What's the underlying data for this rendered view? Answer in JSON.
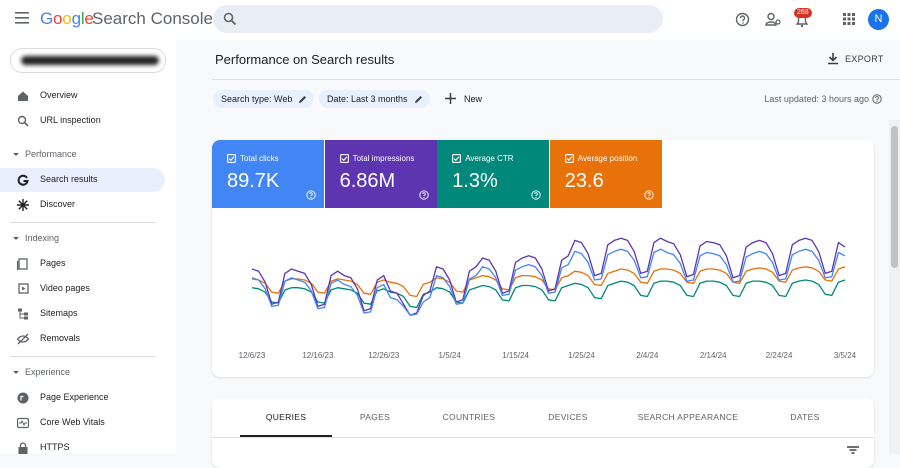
{
  "header": {
    "brand": "Google",
    "product": "Search Console",
    "notifications": "268",
    "avatar": "N"
  },
  "nav": {
    "top": [
      "Overview",
      "URL inspection"
    ],
    "sections": [
      {
        "title": "Performance",
        "items": [
          "Search results",
          "Discover"
        ]
      },
      {
        "title": "Indexing",
        "items": [
          "Pages",
          "Video pages",
          "Sitemaps",
          "Removals"
        ]
      },
      {
        "title": "Experience",
        "items": [
          "Page Experience",
          "Core Web Vitals",
          "HTTPS"
        ]
      }
    ]
  },
  "page": {
    "title": "Performance on Search results",
    "export": "EXPORT",
    "filters": [
      "Search type: Web",
      "Date: Last 3 months"
    ],
    "new": "New",
    "last_updated": "Last updated: 3 hours ago"
  },
  "chart_data": {
    "type": "line",
    "categories": [
      "12/6/23",
      null,
      null,
      null,
      null,
      null,
      null,
      null,
      null,
      null,
      "12/16/23",
      null,
      null,
      null,
      null,
      null,
      null,
      null,
      null,
      null,
      "12/26/23",
      null,
      null,
      null,
      null,
      null,
      null,
      null,
      null,
      null,
      "1/5/24",
      null,
      null,
      null,
      null,
      null,
      null,
      null,
      null,
      null,
      "1/15/24",
      null,
      null,
      null,
      null,
      null,
      null,
      null,
      null,
      null,
      "1/25/24",
      null,
      null,
      null,
      null,
      null,
      null,
      null,
      null,
      null,
      "2/4/24",
      null,
      null,
      null,
      null,
      null,
      null,
      null,
      null,
      null,
      "2/14/24",
      null,
      null,
      null,
      null,
      null,
      null,
      null,
      null,
      null,
      "2/24/24",
      null,
      null,
      null,
      null,
      null,
      null,
      null,
      null,
      null,
      "3/5/24"
    ],
    "ylim": [
      0,
      100
    ],
    "series": [
      {
        "name": "Total clicks",
        "total": "89.7K",
        "color": "#4285f4",
        "values": [
          52,
          50,
          42,
          26,
          27,
          49,
          52,
          50,
          48,
          40,
          24,
          25,
          47,
          50,
          46,
          44,
          36,
          20,
          21,
          43,
          46,
          34,
          32,
          26,
          18,
          19,
          30,
          34,
          54,
          52,
          44,
          28,
          29,
          51,
          54,
          62,
          60,
          52,
          36,
          37,
          59,
          62,
          64,
          62,
          54,
          38,
          39,
          61,
          64,
          76,
          74,
          66,
          50,
          51,
          73,
          76,
          78,
          76,
          68,
          52,
          53,
          75,
          78,
          75,
          73,
          65,
          49,
          50,
          72,
          75,
          74,
          72,
          64,
          48,
          49,
          71,
          74,
          76,
          74,
          66,
          50,
          51,
          73,
          76,
          78,
          76,
          68,
          52,
          53,
          75,
          72
        ]
      },
      {
        "name": "Total impressions",
        "total": "6.86M",
        "color": "#5e35b1",
        "values": [
          60,
          58,
          48,
          28,
          30,
          56,
          60,
          58,
          56,
          46,
          26,
          28,
          54,
          58,
          54,
          52,
          42,
          22,
          24,
          50,
          54,
          40,
          38,
          28,
          18,
          20,
          36,
          40,
          62,
          60,
          50,
          30,
          32,
          58,
          62,
          70,
          68,
          58,
          38,
          40,
          66,
          70,
          72,
          70,
          60,
          40,
          42,
          68,
          72,
          86,
          84,
          74,
          54,
          56,
          82,
          86,
          88,
          86,
          76,
          56,
          58,
          84,
          88,
          85,
          83,
          73,
          53,
          55,
          81,
          85,
          84,
          82,
          72,
          52,
          54,
          80,
          84,
          86,
          84,
          74,
          54,
          56,
          82,
          86,
          88,
          86,
          76,
          56,
          58,
          84,
          80
        ]
      },
      {
        "name": "Average CTR",
        "total": "1.3%",
        "color": "#00897b",
        "values": [
          43,
          42,
          39,
          30,
          29,
          41,
          43,
          43,
          42,
          39,
          30,
          29,
          41,
          43,
          42,
          41,
          38,
          29,
          28,
          40,
          42,
          39,
          38,
          35,
          26,
          25,
          37,
          39,
          43,
          42,
          39,
          30,
          29,
          41,
          43,
          45,
          44,
          41,
          32,
          31,
          43,
          45,
          45,
          44,
          41,
          32,
          31,
          43,
          45,
          47,
          46,
          43,
          34,
          33,
          45,
          47,
          49,
          48,
          45,
          36,
          35,
          47,
          49,
          49,
          48,
          45,
          36,
          35,
          47,
          49,
          49,
          48,
          45,
          36,
          35,
          47,
          49,
          49,
          48,
          45,
          36,
          35,
          47,
          49,
          50,
          49,
          46,
          37,
          36,
          48,
          50
        ]
      },
      {
        "name": "Average position",
        "total": "23.6",
        "color": "#e8710a",
        "values": [
          51,
          50,
          47,
          39,
          38,
          49,
          51,
          51,
          50,
          47,
          39,
          38,
          49,
          51,
          50,
          49,
          46,
          38,
          37,
          48,
          50,
          48,
          47,
          44,
          36,
          35,
          46,
          48,
          52,
          51,
          48,
          40,
          39,
          50,
          52,
          54,
          53,
          50,
          42,
          41,
          52,
          54,
          54,
          53,
          50,
          42,
          41,
          52,
          54,
          58,
          57,
          54,
          46,
          45,
          56,
          58,
          60,
          59,
          56,
          48,
          47,
          58,
          60,
          60,
          59,
          56,
          48,
          47,
          58,
          60,
          60,
          59,
          56,
          48,
          47,
          58,
          60,
          61,
          60,
          57,
          49,
          48,
          59,
          61,
          62,
          61,
          58,
          50,
          49,
          60,
          62
        ]
      }
    ]
  },
  "tabs": {
    "items": [
      "QUERIES",
      "PAGES",
      "COUNTRIES",
      "DEVICES",
      "SEARCH APPEARANCE",
      "DATES"
    ],
    "selected": 0
  }
}
